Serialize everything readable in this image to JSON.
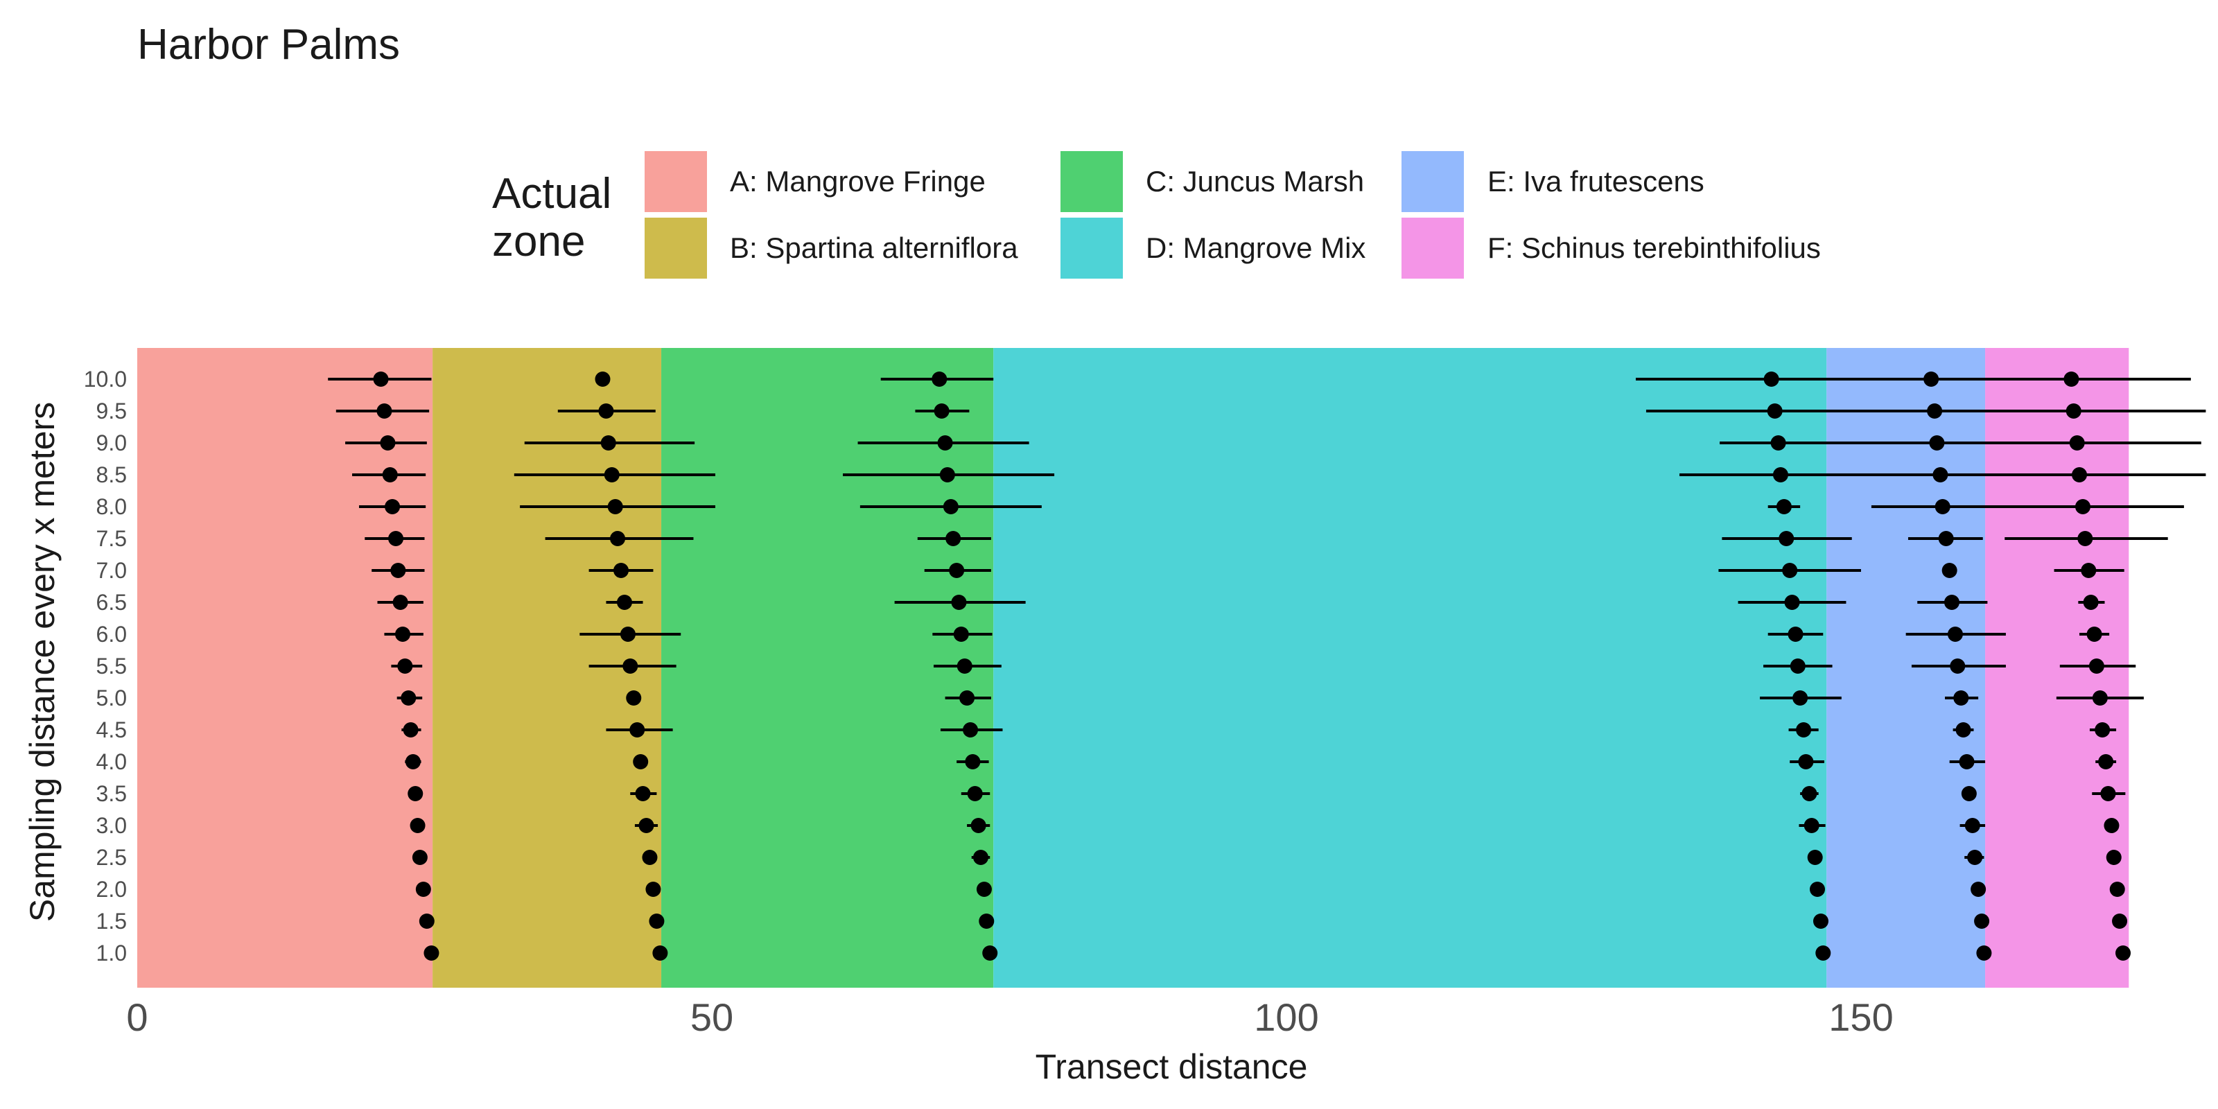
{
  "chart_data": {
    "type": "scatter",
    "title": "Harbor Palms",
    "xlabel": "Transect distance",
    "ylabel": "Sampling distance every x meters",
    "xlim": [
      0,
      177
    ],
    "x_ticks": [
      "0",
      "50",
      "100",
      "150"
    ],
    "x_tick_values": [
      0,
      50,
      100,
      150
    ],
    "y_categories": [
      "1.0",
      "1.5",
      "2.0",
      "2.5",
      "3.0",
      "3.5",
      "4.0",
      "4.5",
      "5.0",
      "5.5",
      "6.0",
      "6.5",
      "7.0",
      "7.5",
      "8.0",
      "8.5",
      "9.0",
      "9.5",
      "10.0"
    ],
    "legend": {
      "title_lines": [
        "Actual",
        "zone"
      ],
      "position": "top",
      "items": [
        {
          "label": "A: Mangrove Fringe",
          "color": "#f8a19b"
        },
        {
          "label": "B: Spartina alterniflora",
          "color": "#cebb4c"
        },
        {
          "label": "C: Juncus Marsh",
          "color": "#4fd071"
        },
        {
          "label": "D: Mangrove Mix",
          "color": "#4ed3d6"
        },
        {
          "label": "E: Iva frutescens",
          "color": "#93b9fd"
        },
        {
          "label": "F: Schinus terebinthifolius",
          "color": "#f495e7"
        }
      ]
    },
    "zones": [
      {
        "name": "A",
        "start": 0,
        "end": 25.7,
        "color": "#f8a19b"
      },
      {
        "name": "B",
        "start": 25.7,
        "end": 45.6,
        "color": "#cebb4c"
      },
      {
        "name": "C",
        "start": 45.6,
        "end": 74.5,
        "color": "#4fd071"
      },
      {
        "name": "D",
        "start": 74.5,
        "end": 147.0,
        "color": "#4ed3d6"
      },
      {
        "name": "E",
        "start": 147.0,
        "end": 160.8,
        "color": "#93b9fd"
      },
      {
        "name": "F",
        "start": 160.8,
        "end": 173.3,
        "color": "#f495e7"
      }
    ],
    "series": [
      {
        "boundary": "A/B",
        "points": [
          {
            "y": 1.0,
            "x": 25.6,
            "lo": 25.6,
            "hi": 25.6
          },
          {
            "y": 1.5,
            "x": 25.2,
            "lo": 25.2,
            "hi": 25.2
          },
          {
            "y": 2.0,
            "x": 24.9,
            "lo": 24.9,
            "hi": 24.9
          },
          {
            "y": 2.5,
            "x": 24.6,
            "lo": 24.6,
            "hi": 24.6
          },
          {
            "y": 3.0,
            "x": 24.4,
            "lo": 24.4,
            "hi": 24.4
          },
          {
            "y": 3.5,
            "x": 24.2,
            "lo": 24.2,
            "hi": 24.2
          },
          {
            "y": 4.0,
            "x": 24.0,
            "lo": 23.3,
            "hi": 24.7
          },
          {
            "y": 4.5,
            "x": 23.8,
            "lo": 23.0,
            "hi": 24.7
          },
          {
            "y": 5.0,
            "x": 23.6,
            "lo": 22.6,
            "hi": 24.8
          },
          {
            "y": 5.5,
            "x": 23.3,
            "lo": 22.1,
            "hi": 24.8
          },
          {
            "y": 6.0,
            "x": 23.1,
            "lo": 21.5,
            "hi": 24.9
          },
          {
            "y": 6.5,
            "x": 22.9,
            "lo": 20.9,
            "hi": 24.9
          },
          {
            "y": 7.0,
            "x": 22.7,
            "lo": 20.4,
            "hi": 25.0
          },
          {
            "y": 7.5,
            "x": 22.5,
            "lo": 19.8,
            "hi": 25.0
          },
          {
            "y": 8.0,
            "x": 22.2,
            "lo": 19.3,
            "hi": 25.1
          },
          {
            "y": 8.5,
            "x": 22.0,
            "lo": 18.7,
            "hi": 25.1
          },
          {
            "y": 9.0,
            "x": 21.8,
            "lo": 18.1,
            "hi": 25.2
          },
          {
            "y": 9.5,
            "x": 21.5,
            "lo": 17.3,
            "hi": 25.4
          },
          {
            "y": 10.0,
            "x": 21.2,
            "lo": 16.6,
            "hi": 25.6
          }
        ]
      },
      {
        "boundary": "B/C",
        "points": [
          {
            "y": 1.0,
            "x": 45.5,
            "lo": 45.5,
            "hi": 45.5
          },
          {
            "y": 1.5,
            "x": 45.2,
            "lo": 45.2,
            "hi": 45.2
          },
          {
            "y": 2.0,
            "x": 44.9,
            "lo": 44.9,
            "hi": 44.9
          },
          {
            "y": 2.5,
            "x": 44.6,
            "lo": 44.6,
            "hi": 44.6
          },
          {
            "y": 3.0,
            "x": 44.3,
            "lo": 43.3,
            "hi": 45.3
          },
          {
            "y": 3.5,
            "x": 44.0,
            "lo": 42.9,
            "hi": 45.2
          },
          {
            "y": 4.0,
            "x": 43.8,
            "lo": 43.8,
            "hi": 43.8
          },
          {
            "y": 4.5,
            "x": 43.5,
            "lo": 40.8,
            "hi": 46.6
          },
          {
            "y": 5.0,
            "x": 43.2,
            "lo": 43.2,
            "hi": 43.2
          },
          {
            "y": 5.5,
            "x": 42.9,
            "lo": 39.3,
            "hi": 46.9
          },
          {
            "y": 6.0,
            "x": 42.7,
            "lo": 38.5,
            "hi": 47.3
          },
          {
            "y": 6.5,
            "x": 42.4,
            "lo": 40.8,
            "hi": 44.0
          },
          {
            "y": 7.0,
            "x": 42.1,
            "lo": 39.3,
            "hi": 44.9
          },
          {
            "y": 7.5,
            "x": 41.8,
            "lo": 35.5,
            "hi": 48.4
          },
          {
            "y": 8.0,
            "x": 41.6,
            "lo": 33.3,
            "hi": 50.3
          },
          {
            "y": 8.5,
            "x": 41.3,
            "lo": 32.8,
            "hi": 50.3
          },
          {
            "y": 9.0,
            "x": 41.0,
            "lo": 33.7,
            "hi": 48.5
          },
          {
            "y": 9.5,
            "x": 40.8,
            "lo": 36.6,
            "hi": 45.1
          },
          {
            "y": 10.0,
            "x": 40.5,
            "lo": 40.5,
            "hi": 40.5
          }
        ]
      },
      {
        "boundary": "C/D",
        "points": [
          {
            "y": 1.0,
            "x": 74.2,
            "lo": 74.2,
            "hi": 74.2
          },
          {
            "y": 1.5,
            "x": 73.9,
            "lo": 73.9,
            "hi": 73.9
          },
          {
            "y": 2.0,
            "x": 73.7,
            "lo": 73.7,
            "hi": 73.7
          },
          {
            "y": 2.5,
            "x": 73.4,
            "lo": 72.6,
            "hi": 74.2
          },
          {
            "y": 3.0,
            "x": 73.2,
            "lo": 72.2,
            "hi": 74.2
          },
          {
            "y": 3.5,
            "x": 72.9,
            "lo": 71.7,
            "hi": 74.2
          },
          {
            "y": 4.0,
            "x": 72.7,
            "lo": 71.3,
            "hi": 74.1
          },
          {
            "y": 4.5,
            "x": 72.5,
            "lo": 69.9,
            "hi": 75.3
          },
          {
            "y": 5.0,
            "x": 72.2,
            "lo": 70.3,
            "hi": 74.3
          },
          {
            "y": 5.5,
            "x": 72.0,
            "lo": 69.3,
            "hi": 75.2
          },
          {
            "y": 6.0,
            "x": 71.7,
            "lo": 69.2,
            "hi": 74.4
          },
          {
            "y": 6.5,
            "x": 71.5,
            "lo": 65.9,
            "hi": 77.3
          },
          {
            "y": 7.0,
            "x": 71.3,
            "lo": 68.5,
            "hi": 74.3
          },
          {
            "y": 7.5,
            "x": 71.0,
            "lo": 67.9,
            "hi": 74.3
          },
          {
            "y": 8.0,
            "x": 70.8,
            "lo": 62.9,
            "hi": 78.7
          },
          {
            "y": 8.5,
            "x": 70.5,
            "lo": 61.4,
            "hi": 79.8
          },
          {
            "y": 9.0,
            "x": 70.3,
            "lo": 62.7,
            "hi": 77.6
          },
          {
            "y": 9.5,
            "x": 70.0,
            "lo": 67.7,
            "hi": 72.4
          },
          {
            "y": 10.0,
            "x": 69.8,
            "lo": 64.7,
            "hi": 74.5
          }
        ]
      },
      {
        "boundary": "D/E",
        "points": [
          {
            "y": 1.0,
            "x": 146.7,
            "lo": 146.7,
            "hi": 146.7
          },
          {
            "y": 1.5,
            "x": 146.5,
            "lo": 146.5,
            "hi": 146.5
          },
          {
            "y": 2.0,
            "x": 146.2,
            "lo": 146.2,
            "hi": 146.2
          },
          {
            "y": 2.5,
            "x": 146.0,
            "lo": 146.0,
            "hi": 146.0
          },
          {
            "y": 3.0,
            "x": 145.7,
            "lo": 144.6,
            "hi": 146.9
          },
          {
            "y": 3.5,
            "x": 145.5,
            "lo": 144.7,
            "hi": 146.3
          },
          {
            "y": 4.0,
            "x": 145.2,
            "lo": 143.8,
            "hi": 146.8
          },
          {
            "y": 4.5,
            "x": 145.0,
            "lo": 143.7,
            "hi": 146.3
          },
          {
            "y": 5.0,
            "x": 144.7,
            "lo": 141.2,
            "hi": 148.3
          },
          {
            "y": 5.5,
            "x": 144.5,
            "lo": 141.5,
            "hi": 147.5
          },
          {
            "y": 6.0,
            "x": 144.3,
            "lo": 141.9,
            "hi": 146.7
          },
          {
            "y": 6.5,
            "x": 144.0,
            "lo": 139.3,
            "hi": 148.7
          },
          {
            "y": 7.0,
            "x": 143.8,
            "lo": 137.6,
            "hi": 150.0
          },
          {
            "y": 7.5,
            "x": 143.5,
            "lo": 137.9,
            "hi": 149.2
          },
          {
            "y": 8.0,
            "x": 143.3,
            "lo": 141.9,
            "hi": 144.7
          },
          {
            "y": 8.5,
            "x": 143.0,
            "lo": 134.2,
            "hi": 151.9
          },
          {
            "y": 9.0,
            "x": 142.8,
            "lo": 137.7,
            "hi": 147.9
          },
          {
            "y": 9.5,
            "x": 142.5,
            "lo": 131.3,
            "hi": 153.9
          },
          {
            "y": 10.0,
            "x": 142.2,
            "lo": 130.4,
            "hi": 154.0
          }
        ]
      },
      {
        "boundary": "E/F",
        "points": [
          {
            "y": 1.0,
            "x": 160.7,
            "lo": 160.7,
            "hi": 160.7
          },
          {
            "y": 1.5,
            "x": 160.5,
            "lo": 160.5,
            "hi": 160.5
          },
          {
            "y": 2.0,
            "x": 160.2,
            "lo": 160.2,
            "hi": 160.2
          },
          {
            "y": 2.5,
            "x": 159.9,
            "lo": 159.0,
            "hi": 160.7
          },
          {
            "y": 3.0,
            "x": 159.7,
            "lo": 158.6,
            "hi": 160.8
          },
          {
            "y": 3.5,
            "x": 159.4,
            "lo": 159.4,
            "hi": 159.4
          },
          {
            "y": 4.0,
            "x": 159.2,
            "lo": 157.7,
            "hi": 160.8
          },
          {
            "y": 4.5,
            "x": 158.9,
            "lo": 158.0,
            "hi": 159.8
          },
          {
            "y": 5.0,
            "x": 158.7,
            "lo": 157.3,
            "hi": 160.2
          },
          {
            "y": 5.5,
            "x": 158.4,
            "lo": 154.4,
            "hi": 162.6
          },
          {
            "y": 6.0,
            "x": 158.2,
            "lo": 153.9,
            "hi": 162.6
          },
          {
            "y": 6.5,
            "x": 157.9,
            "lo": 154.9,
            "hi": 161.0
          },
          {
            "y": 7.0,
            "x": 157.7,
            "lo": 157.7,
            "hi": 157.7
          },
          {
            "y": 7.5,
            "x": 157.4,
            "lo": 154.1,
            "hi": 160.6
          },
          {
            "y": 8.0,
            "x": 157.1,
            "lo": 150.9,
            "hi": 163.8
          },
          {
            "y": 8.5,
            "x": 156.9,
            "lo": 148.8,
            "hi": 165.4
          },
          {
            "y": 9.0,
            "x": 156.6,
            "lo": 144.8,
            "hi": 168.9
          },
          {
            "y": 9.5,
            "x": 156.4,
            "lo": 142.1,
            "hi": 170.7
          },
          {
            "y": 10.0,
            "x": 156.1,
            "lo": 144.1,
            "hi": 168.6
          }
        ]
      },
      {
        "boundary": "F/end",
        "points": [
          {
            "y": 1.0,
            "x": 172.8,
            "lo": 172.8,
            "hi": 172.8
          },
          {
            "y": 1.5,
            "x": 172.5,
            "lo": 172.5,
            "hi": 172.5
          },
          {
            "y": 2.0,
            "x": 172.3,
            "lo": 172.3,
            "hi": 172.3
          },
          {
            "y": 2.5,
            "x": 172.0,
            "lo": 172.0,
            "hi": 172.0
          },
          {
            "y": 3.0,
            "x": 171.8,
            "lo": 171.8,
            "hi": 171.8
          },
          {
            "y": 3.5,
            "x": 171.5,
            "lo": 170.1,
            "hi": 173.0
          },
          {
            "y": 4.0,
            "x": 171.3,
            "lo": 170.4,
            "hi": 172.2
          },
          {
            "y": 4.5,
            "x": 171.0,
            "lo": 169.9,
            "hi": 172.2
          },
          {
            "y": 5.0,
            "x": 170.8,
            "lo": 167.0,
            "hi": 174.6
          },
          {
            "y": 5.5,
            "x": 170.5,
            "lo": 167.3,
            "hi": 173.9
          },
          {
            "y": 6.0,
            "x": 170.3,
            "lo": 169.0,
            "hi": 171.6
          },
          {
            "y": 6.5,
            "x": 170.0,
            "lo": 168.9,
            "hi": 171.2
          },
          {
            "y": 7.0,
            "x": 169.8,
            "lo": 166.8,
            "hi": 172.9
          },
          {
            "y": 7.5,
            "x": 169.5,
            "lo": 162.5,
            "hi": 176.7
          },
          {
            "y": 8.0,
            "x": 169.3,
            "lo": 160.7,
            "hi": 178.1
          },
          {
            "y": 8.5,
            "x": 169.0,
            "lo": 158.2,
            "hi": 180.0
          },
          {
            "y": 9.0,
            "x": 168.8,
            "lo": 158.0,
            "hi": 179.6
          },
          {
            "y": 9.5,
            "x": 168.5,
            "lo": 156.8,
            "hi": 180.0
          },
          {
            "y": 10.0,
            "x": 168.3,
            "lo": 157.9,
            "hi": 178.7
          }
        ]
      }
    ]
  }
}
